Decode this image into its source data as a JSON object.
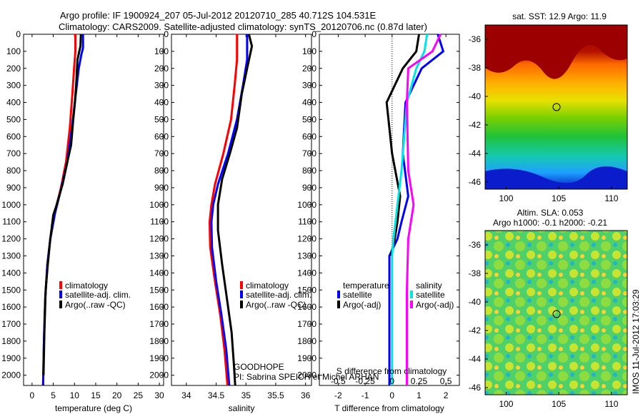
{
  "header": {
    "title_line1": "Argo profile: IF 1900924_207 05-Jul-2012 20120710_285 40.712S 104.531E",
    "title_line2": "Climatology: CARS2009. Satellite-adjusted climatology: synTS_20120706.nc (0.87d later)"
  },
  "side_label": "IMOS 11-Jul-2012 17:03:29",
  "project": {
    "line1": "GOODHOPE",
    "line2": "PI: Sabrina SPEICH et Michel ARHAN"
  },
  "colors": {
    "climatology": "#ff0000",
    "satellite": "#0000ff",
    "argo": "#000000",
    "satellite_sal": "#00e5e5",
    "argo_sal": "#ff00ff"
  },
  "depth_axis": {
    "ylim": [
      0,
      2060
    ],
    "ticks": [
      0,
      100,
      200,
      300,
      400,
      500,
      600,
      700,
      800,
      900,
      1000,
      1100,
      1200,
      1300,
      1400,
      1500,
      1600,
      1700,
      1800,
      1900,
      2000
    ]
  },
  "chart_data": [
    {
      "type": "line",
      "xlabel": "temperature (deg C)",
      "xlim": [
        -2,
        31
      ],
      "xticks": [
        0,
        5,
        10,
        15,
        20,
        25,
        30
      ],
      "legend": {
        "position": "lower-left",
        "entries": [
          "climatology",
          "satellite-adj. clim.",
          "Argo(..raw -QC)"
        ]
      },
      "series": [
        {
          "name": "climatology",
          "color": "#ff0000",
          "points": [
            [
              10.2,
              0
            ],
            [
              10.2,
              100
            ],
            [
              9.9,
              200
            ],
            [
              9.5,
              350
            ],
            [
              8.9,
              550
            ],
            [
              8.0,
              750
            ],
            [
              6.8,
              900
            ],
            [
              5.3,
              1050
            ],
            [
              4.3,
              1200
            ],
            [
              3.6,
              1350
            ],
            [
              3.1,
              1550
            ],
            [
              2.8,
              1800
            ],
            [
              2.6,
              2060
            ]
          ]
        },
        {
          "name": "satellite-adj. clim.",
          "color": "#0000ff",
          "points": [
            [
              12.0,
              0
            ],
            [
              12.0,
              80
            ],
            [
              11.6,
              120
            ],
            [
              11.0,
              200
            ],
            [
              10.3,
              350
            ],
            [
              9.4,
              550
            ],
            [
              8.3,
              750
            ],
            [
              6.9,
              900
            ],
            [
              5.4,
              1050
            ],
            [
              4.3,
              1200
            ],
            [
              3.6,
              1350
            ],
            [
              3.1,
              1550
            ],
            [
              2.8,
              1800
            ],
            [
              2.6,
              2060
            ]
          ]
        },
        {
          "name": "Argo(..raw -QC)",
          "color": "#000000",
          "points": [
            [
              11.5,
              0
            ],
            [
              11.4,
              70
            ],
            [
              10.7,
              150
            ],
            [
              10.4,
              300
            ],
            [
              10.1,
              400
            ],
            [
              9.7,
              500
            ],
            [
              9.2,
              650
            ],
            [
              8.3,
              750
            ],
            [
              7.2,
              880
            ],
            [
              5.8,
              1000
            ],
            [
              5.0,
              1060
            ],
            [
              4.3,
              1200
            ],
            [
              3.7,
              1350
            ],
            [
              3.2,
              1500
            ],
            [
              2.9,
              1750
            ],
            [
              2.7,
              2000
            ]
          ]
        }
      ]
    },
    {
      "type": "line",
      "xlabel": "salinity",
      "xlim": [
        33.75,
        36.1
      ],
      "xticks": [
        34,
        34.5,
        35,
        35.5,
        36
      ],
      "legend": {
        "position": "lower-left",
        "entries": [
          "climatology",
          "satellite-adj. clim.",
          "Argo(..raw -QC)"
        ]
      },
      "series": [
        {
          "name": "climatology",
          "color": "#ff0000",
          "points": [
            [
              34.85,
              0
            ],
            [
              34.85,
              150
            ],
            [
              34.81,
              300
            ],
            [
              34.75,
              500
            ],
            [
              34.62,
              700
            ],
            [
              34.48,
              880
            ],
            [
              34.42,
              1000
            ],
            [
              34.39,
              1100
            ],
            [
              34.4,
              1250
            ],
            [
              34.48,
              1450
            ],
            [
              34.57,
              1650
            ],
            [
              34.64,
              1850
            ],
            [
              34.69,
              2060
            ]
          ]
        },
        {
          "name": "satellite-adj. clim.",
          "color": "#0000ff",
          "points": [
            [
              35.02,
              0
            ],
            [
              35.02,
              150
            ],
            [
              34.95,
              300
            ],
            [
              34.85,
              500
            ],
            [
              34.7,
              700
            ],
            [
              34.53,
              880
            ],
            [
              34.45,
              1000
            ],
            [
              34.42,
              1100
            ],
            [
              34.43,
              1250
            ],
            [
              34.5,
              1450
            ],
            [
              34.59,
              1650
            ],
            [
              34.67,
              1850
            ],
            [
              34.72,
              2060
            ]
          ]
        },
        {
          "name": "Argo(..raw -QC)",
          "color": "#000000",
          "points": [
            [
              35.05,
              0
            ],
            [
              35.1,
              70
            ],
            [
              35.02,
              200
            ],
            [
              34.93,
              350
            ],
            [
              34.85,
              550
            ],
            [
              34.73,
              700
            ],
            [
              34.6,
              850
            ],
            [
              34.53,
              1000
            ],
            [
              34.53,
              1150
            ],
            [
              34.6,
              1350
            ],
            [
              34.68,
              1550
            ],
            [
              34.76,
              1750
            ],
            [
              34.8,
              1950
            ],
            [
              34.82,
              2060
            ]
          ]
        }
      ]
    },
    {
      "type": "line",
      "xlabel": "T difference from climatology",
      "xlabel_top": "S difference from climatology",
      "xlim": [
        -2.7,
        2.5
      ],
      "xticks": [
        -2,
        -1,
        0,
        1,
        2
      ],
      "top_ticks": [
        "-0.5",
        "-0.25",
        "0",
        "0.25",
        "0.5"
      ],
      "legend": {
        "position": "lower",
        "temperature_title": "temperature",
        "salinity_title": "salinity",
        "entries": [
          "satellite",
          "Argo(-adj)",
          "satellite",
          "Argo(-adj)"
        ]
      },
      "series": [
        {
          "name": "satellite",
          "color": "#0000ff",
          "points": [
            [
              1.7,
              0
            ],
            [
              1.9,
              100
            ],
            [
              1.1,
              200
            ],
            [
              0.5,
              400
            ],
            [
              0.4,
              700
            ],
            [
              0.6,
              950
            ],
            [
              0.35,
              1100
            ],
            [
              0.2,
              1200
            ],
            [
              -0.1,
              1300
            ],
            [
              -0.1,
              2060
            ]
          ]
        },
        {
          "name": "Argo(-adj)",
          "color": "#000000",
          "points": [
            [
              1.0,
              0
            ],
            [
              0.9,
              100
            ],
            [
              0.4,
              200
            ],
            [
              -0.2,
              400
            ],
            [
              0.0,
              700
            ],
            [
              0.3,
              950
            ],
            [
              0.2,
              1100
            ],
            [
              0.1,
              1200
            ],
            [
              -0.05,
              1300
            ]
          ]
        },
        {
          "name": "satellite",
          "color": "#00e5e5",
          "points": [
            [
              1.3,
              0
            ],
            [
              1.2,
              100
            ],
            [
              0.9,
              200
            ],
            [
              0.55,
              400
            ],
            [
              0.35,
              800
            ],
            [
              0.2,
              1000
            ],
            [
              0.05,
              1200
            ],
            [
              0.0,
              1300
            ],
            [
              0.0,
              2060
            ]
          ]
        },
        {
          "name": "Argo(-adj)",
          "color": "#ff00ff",
          "points": [
            [
              1.8,
              0
            ],
            [
              1.5,
              100
            ],
            [
              0.6,
              200
            ],
            [
              0.55,
              400
            ],
            [
              0.6,
              800
            ],
            [
              0.8,
              1000
            ],
            [
              0.6,
              1200
            ],
            [
              0.55,
              1500
            ],
            [
              0.55,
              2060
            ]
          ]
        }
      ]
    }
  ],
  "maps": [
    {
      "title": "sat. SST: 12.9 Argo: 11.9",
      "yticks": [
        "-36",
        "-38",
        "-40",
        "-42",
        "-44",
        "-46"
      ],
      "xticks": [
        "100",
        "105",
        "110"
      ],
      "float_marker": [
        104.5,
        -40.7
      ]
    },
    {
      "title_line1": "Altim. SLA: 0.053",
      "title_line2": "Argo h1000: -0.1 h2000: -0.21",
      "yticks": [
        "-36",
        "-38",
        "-40",
        "-42",
        "-44",
        "-46"
      ],
      "xticks": [
        "100",
        "105",
        "110"
      ],
      "float_marker": [
        104.5,
        -40.7
      ]
    }
  ]
}
